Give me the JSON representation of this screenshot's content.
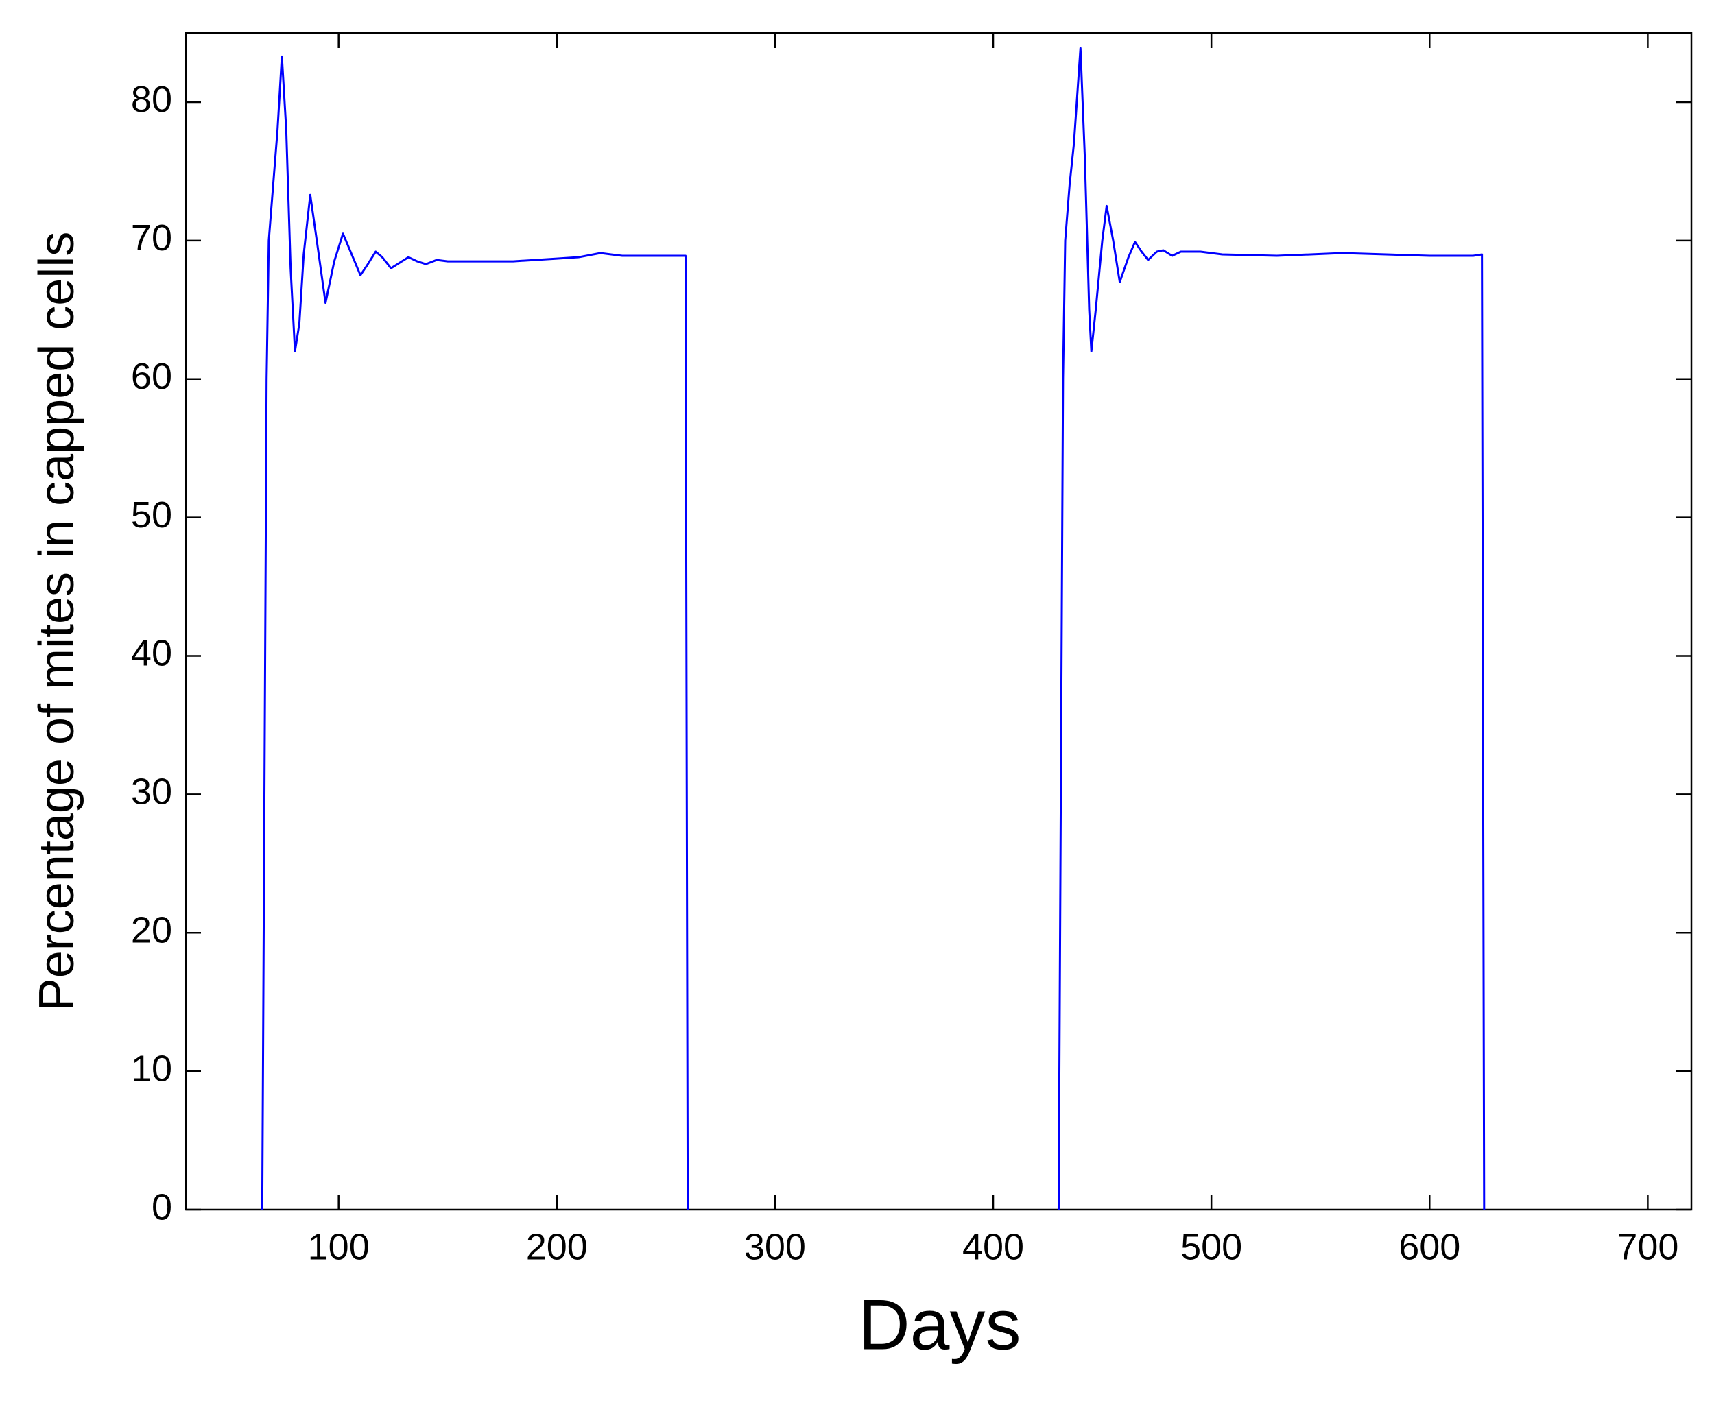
{
  "chart_data": {
    "type": "line",
    "xlabel": "Days",
    "ylabel": "Percentage of mites in capped cells",
    "x": [
      65,
      66,
      67,
      68,
      70,
      72,
      74,
      76,
      78,
      80,
      82,
      84,
      87,
      90,
      94,
      98,
      102,
      106,
      110,
      113,
      117,
      120,
      124,
      128,
      132,
      136,
      140,
      145,
      150,
      160,
      180,
      200,
      210,
      220,
      230,
      259,
      260,
      345,
      430,
      431,
      432,
      433,
      435,
      437,
      440,
      442,
      444,
      445,
      447,
      450,
      452,
      455,
      458,
      462,
      465,
      468,
      471,
      475,
      478,
      482,
      486,
      495,
      505,
      530,
      560,
      600,
      620,
      624,
      625
    ],
    "series": [
      {
        "color": "#0000ff",
        "values": [
          0,
          30,
          60,
          70,
          74,
          78,
          83.3,
          78,
          68,
          62,
          64,
          69,
          73.3,
          70,
          65.5,
          68.5,
          70.5,
          69,
          67.5,
          68.2,
          69.2,
          68.8,
          68,
          68.4,
          68.8,
          68.5,
          68.3,
          68.6,
          68.5,
          68.5,
          68.5,
          68.7,
          68.8,
          69.1,
          68.9,
          68.9,
          0,
          null,
          0,
          30,
          60,
          70,
          74,
          77,
          83.9,
          76,
          65,
          62,
          65,
          70,
          72.5,
          70,
          67,
          68.8,
          69.9,
          69.2,
          68.6,
          69.2,
          69.3,
          68.9,
          69.2,
          69.2,
          69,
          68.9,
          69.1,
          68.9,
          68.9,
          69,
          0
        ]
      }
    ],
    "xlim": [
      30,
      720
    ],
    "ylim": [
      0,
      85
    ],
    "xticks": [
      100,
      200,
      300,
      400,
      500,
      600,
      700
    ],
    "yticks": [
      0,
      10,
      20,
      30,
      40,
      50,
      60,
      70,
      80
    ],
    "grid": false
  }
}
